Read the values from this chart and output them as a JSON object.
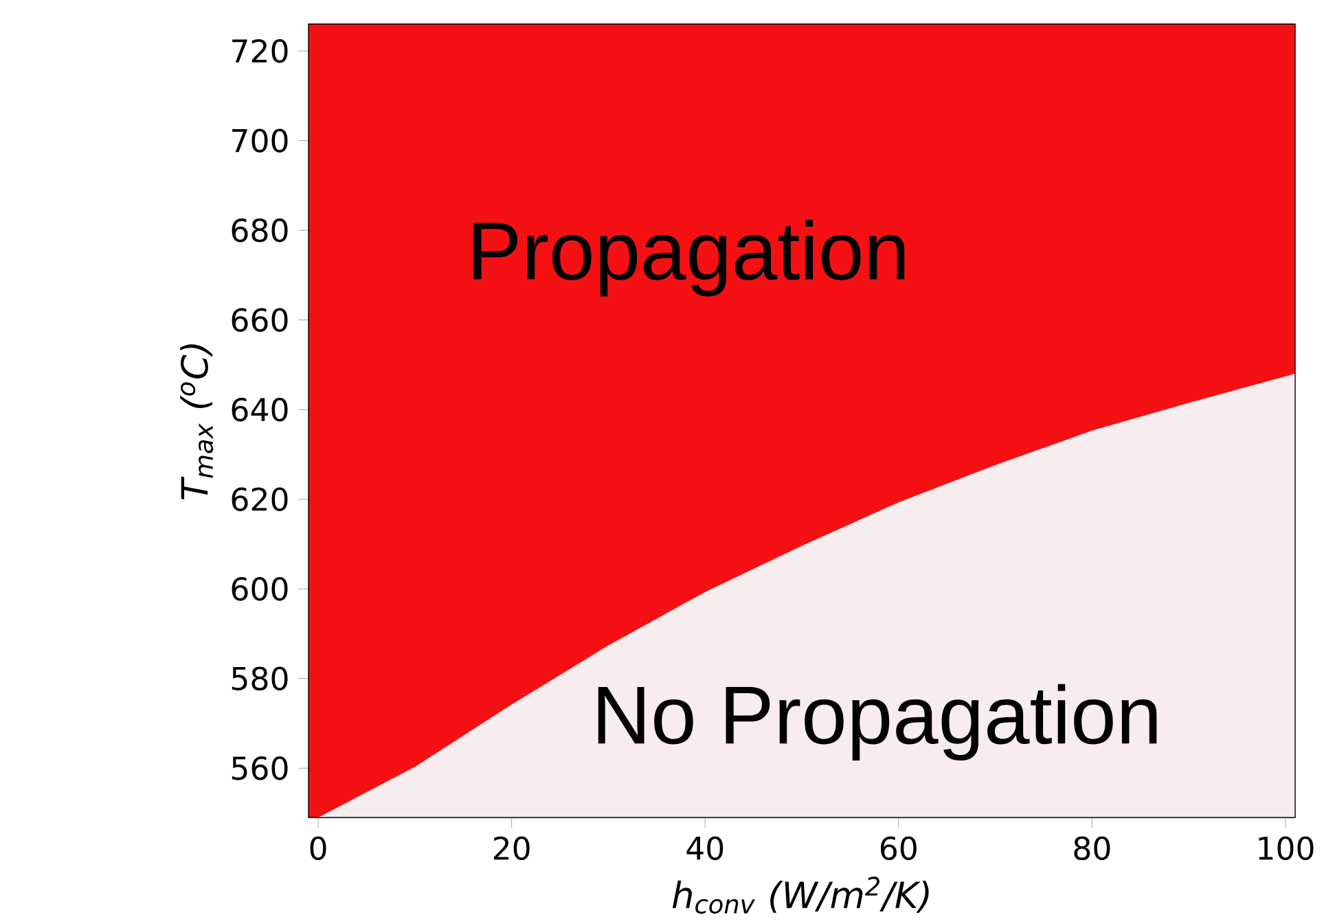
{
  "chart_data": {
    "type": "area",
    "xlabel": "h$_{conv}$ (W/m$^{2}$/K)",
    "ylabel": "T$_{max}$ ($^{o}$C)",
    "x": [
      0,
      10,
      20,
      30,
      40,
      50,
      60,
      70,
      80,
      90,
      101
    ],
    "series": [
      {
        "color": "#f7edef",
        "values": [
          549,
          560.3,
          574.2,
          587.4,
          599.3,
          609.6,
          619.3,
          627.6,
          635.3,
          641.5,
          648
        ]
      }
    ],
    "bands": [
      {
        "axis": "y",
        "from": 549,
        "to": 726,
        "color": "#f51113"
      }
    ],
    "annotations": [
      "Propagation",
      "No Propagation"
    ],
    "xlim": [
      -1,
      101
    ],
    "ylim": [
      549,
      726
    ],
    "xticks": [
      0,
      20,
      40,
      60,
      80,
      100
    ],
    "yticks": [
      560,
      580,
      600,
      620,
      640,
      660,
      680,
      700,
      720
    ]
  }
}
